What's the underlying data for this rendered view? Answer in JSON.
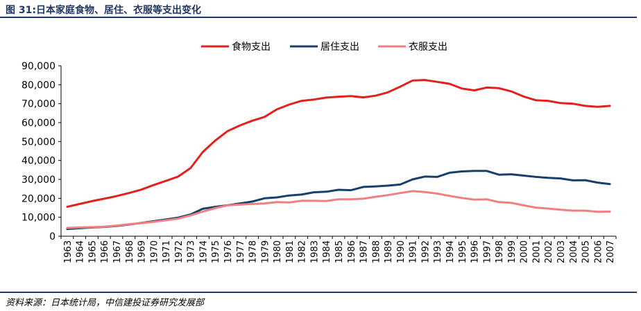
{
  "figure": {
    "title": "图 31:日本家庭食物、居住、衣服等支出变化",
    "source": "资料来源：日本统计局，中信建投证券研究发展部"
  },
  "chart_data": {
    "type": "line",
    "title": "",
    "xlabel": "",
    "ylabel": "",
    "ylim": [
      0,
      90000
    ],
    "yticks": [
      "0",
      "10,000",
      "20,000",
      "30,000",
      "40,000",
      "50,000",
      "60,000",
      "70,000",
      "80,000",
      "90,000"
    ],
    "ytick_values": [
      0,
      10000,
      20000,
      30000,
      40000,
      50000,
      60000,
      70000,
      80000,
      90000
    ],
    "legend_position": "top",
    "grid": false,
    "categories": [
      "1963",
      "1964",
      "1965",
      "1966",
      "1967",
      "1968",
      "1969",
      "1970",
      "1971",
      "1972",
      "1973",
      "1974",
      "1975",
      "1976",
      "1977",
      "1978",
      "1979",
      "1980",
      "1981",
      "1982",
      "1983",
      "1984",
      "1985",
      "1986",
      "1987",
      "1988",
      "1989",
      "1990",
      "1991",
      "1992",
      "1993",
      "1994",
      "1995",
      "1996",
      "1997",
      "1998",
      "1999",
      "2000",
      "2001",
      "2002",
      "2003",
      "2004",
      "2005",
      "2006",
      "2007"
    ],
    "series": [
      {
        "name": "食物支出",
        "color": "#e3211c",
        "values": [
          15500,
          17000,
          18500,
          19800,
          21200,
          22800,
          24600,
          27000,
          29200,
          31500,
          36000,
          44500,
          50500,
          55500,
          58500,
          61000,
          63000,
          67000,
          69500,
          71500,
          72200,
          73200,
          73700,
          74000,
          73300,
          74200,
          76000,
          79000,
          82200,
          82500,
          81500,
          80500,
          78000,
          77000,
          78500,
          78200,
          76500,
          73800,
          71800,
          71500,
          70300,
          70000,
          68800,
          68300,
          68800
        ]
      },
      {
        "name": "居住支出",
        "color": "#17406d",
        "values": [
          3800,
          4200,
          4600,
          4900,
          5400,
          6200,
          7000,
          7900,
          8800,
          9800,
          11500,
          14500,
          15500,
          16300,
          17300,
          18300,
          20000,
          20500,
          21500,
          22000,
          23200,
          23500,
          24500,
          24300,
          26000,
          26300,
          26700,
          27300,
          30000,
          31500,
          31300,
          33500,
          34200,
          34500,
          34500,
          32500,
          32700,
          32000,
          31300,
          30800,
          30500,
          29500,
          29600,
          28300,
          27500
        ]
      },
      {
        "name": "衣服支出",
        "color": "#f08080",
        "values": [
          4400,
          4600,
          4800,
          5000,
          5600,
          6300,
          6900,
          7600,
          8400,
          9300,
          11000,
          13000,
          14800,
          16300,
          16700,
          17000,
          17300,
          18000,
          17800,
          18700,
          18700,
          18600,
          19500,
          19500,
          19800,
          20800,
          21700,
          22800,
          23800,
          23300,
          22500,
          21300,
          20200,
          19300,
          19500,
          18000,
          17600,
          16300,
          15100,
          14600,
          14000,
          13500,
          13500,
          12900,
          13000
        ]
      }
    ]
  }
}
